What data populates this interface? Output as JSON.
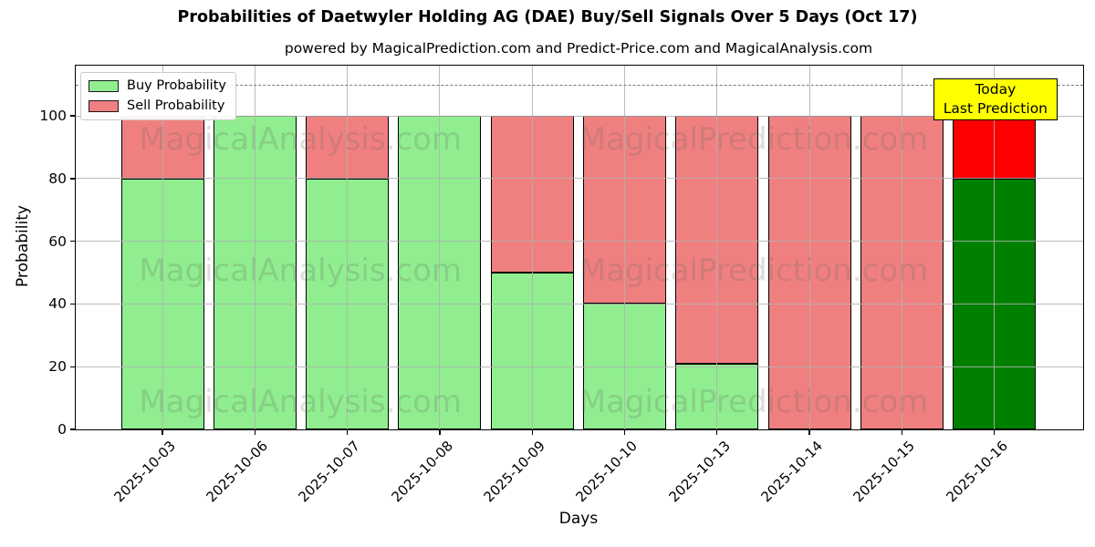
{
  "title": "Probabilities of Daetwyler Holding AG (DAE) Buy/Sell Signals Over 5 Days (Oct 17)",
  "subtitle": "powered by MagicalPrediction.com and Predict-Price.com and MagicalAnalysis.com",
  "annotation": {
    "line1": "Today",
    "line2": "Last Prediction",
    "bg_color": "#ffff00",
    "border_color": "#000000"
  },
  "watermarks": {
    "left_text": "MagicalAnalysis.com",
    "right_text": "MagicalPrediction.com"
  },
  "chart_data": {
    "type": "bar",
    "stacked": true,
    "categories": [
      "2025-10-03",
      "2025-10-06",
      "2025-10-07",
      "2025-10-08",
      "2025-10-09",
      "2025-10-10",
      "2025-10-13",
      "2025-10-14",
      "2025-10-15",
      "2025-10-16"
    ],
    "series": [
      {
        "name": "Buy Probability",
        "color": "#90EE90",
        "today_color": "#008000",
        "values": [
          80,
          100,
          80,
          100,
          50,
          40,
          21,
          0,
          0,
          80
        ]
      },
      {
        "name": "Sell Probability",
        "color": "#F08080",
        "today_color": "#FF0000",
        "values": [
          20,
          0,
          20,
          0,
          50,
          60,
          79,
          100,
          100,
          20
        ]
      }
    ],
    "today_index": 9,
    "xlabel": "Days",
    "ylabel": "Probability",
    "y_ticks": [
      0,
      20,
      40,
      60,
      80,
      100
    ],
    "ylim": [
      0,
      116
    ],
    "dashed_line_y": 110,
    "grid": true,
    "legend_position": "upper left",
    "bar_edge_color": "#000000"
  }
}
